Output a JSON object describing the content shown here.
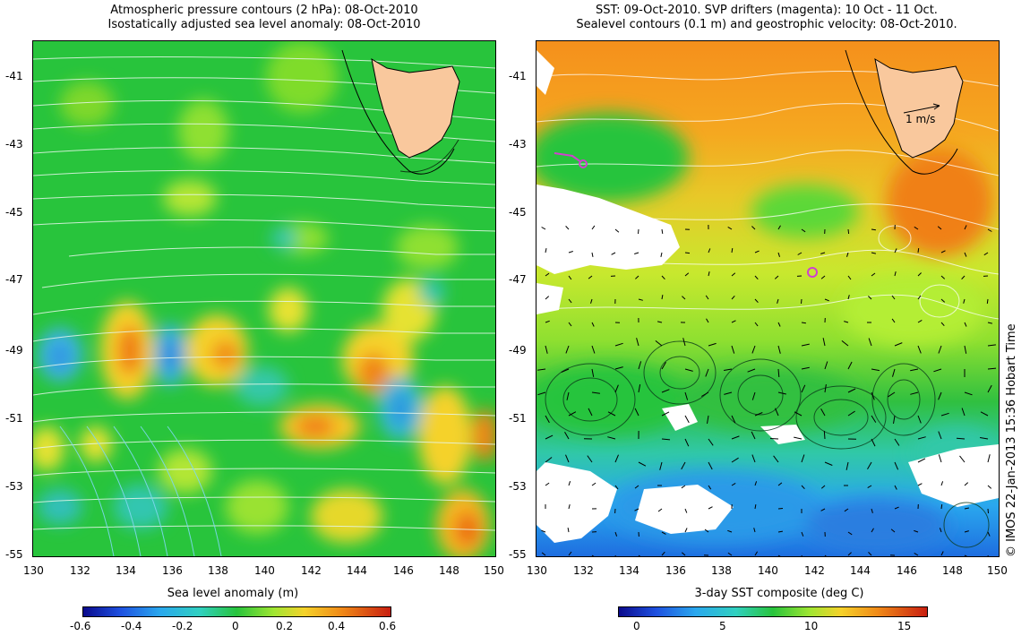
{
  "left_panel": {
    "title_line1": "Atmospheric pressure contours (2 hPa): 08-Oct-2010",
    "title_line2": "Isostatically adjusted sea level anomaly: 08-Oct-2010",
    "lat_ticks": [
      "-41",
      "-43",
      "-45",
      "-47",
      "-49",
      "-51",
      "-53",
      "-55"
    ],
    "lon_ticks": [
      "130",
      "132",
      "134",
      "136",
      "138",
      "140",
      "142",
      "144",
      "146",
      "148",
      "150"
    ],
    "colorbar_title": "Sea level anomaly (m)",
    "colorbar_ticks": [
      "-0.6",
      "-0.4",
      "-0.2",
      "0",
      "0.2",
      "0.4",
      "0.6"
    ]
  },
  "right_panel": {
    "title_line1": "SST: 09-Oct-2010. SVP drifters (magenta): 10 Oct - 11 Oct.",
    "title_line2": "Sealevel contours (0.1 m) and geostrophic velocity: 08-Oct-2010.",
    "lat_ticks": [
      "-41",
      "-43",
      "-45",
      "-47",
      "-49",
      "-51",
      "-53",
      "-55"
    ],
    "lon_ticks": [
      "130",
      "132",
      "134",
      "136",
      "138",
      "140",
      "142",
      "144",
      "146",
      "148",
      "150"
    ],
    "scale_label": "1 m/s",
    "colorbar_title": "3-day SST composite (deg C)",
    "colorbar_ticks": [
      "0",
      "5",
      "10",
      "15"
    ]
  },
  "credit": "© IMOS 22-Jan-2013 15:36 Hobart Time",
  "colors": {
    "land": "#f9c89d",
    "sla_background": "#28c43c",
    "sst_warm": "#f5901c",
    "sst_mid": "#b4ee34",
    "sst_cold": "#2aa8ee"
  }
}
